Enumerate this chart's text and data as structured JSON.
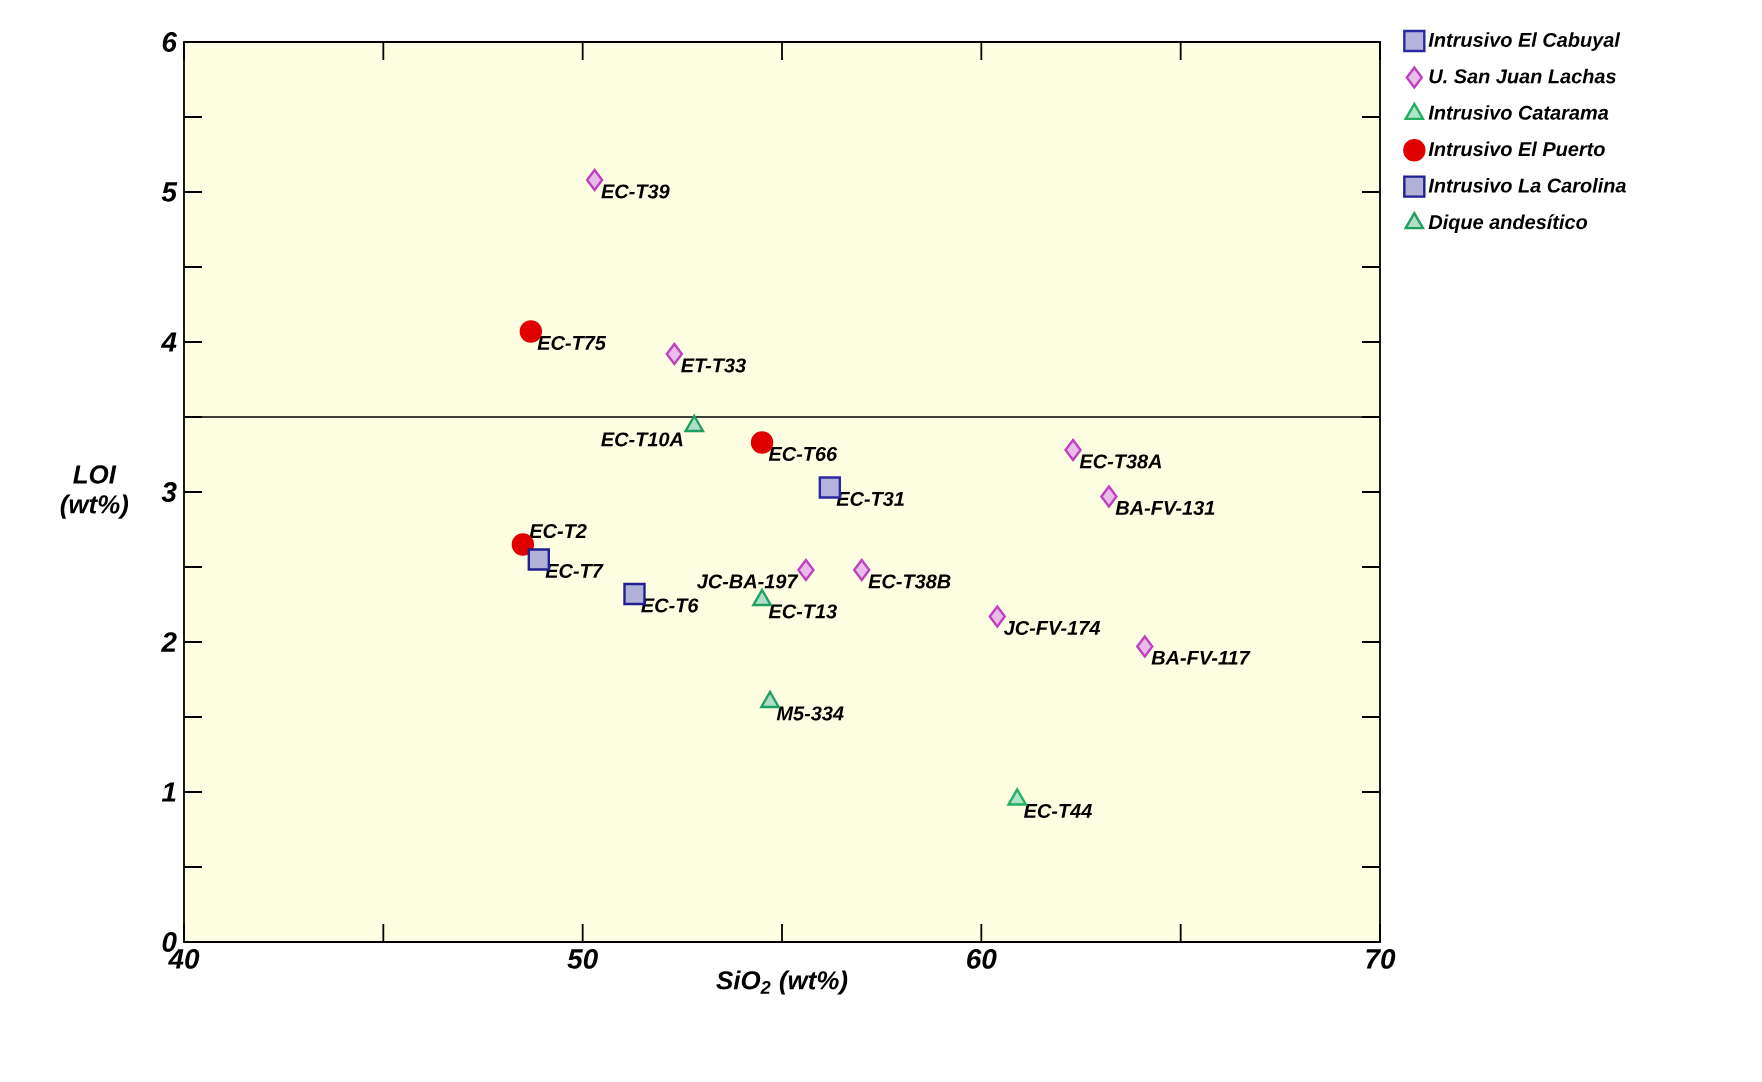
{
  "chart_data": {
    "type": "scatter",
    "xlabel": "SiO$_{2}$ (wt%)",
    "ylabel": "LOI (wt%)",
    "xlim": [
      40,
      70
    ],
    "xticks": [
      40,
      50,
      60,
      70
    ],
    "ylim": [
      0,
      6
    ],
    "yticks": [
      0,
      1,
      2,
      3,
      4,
      5,
      6
    ],
    "grid": false,
    "legend": "top right",
    "ref_lines": [
      {
        "axis": "y",
        "value": 3.5,
        "color": "#000000"
      }
    ],
    "series": [
      {
        "name": "Intrusivo El Cabuyal",
        "marker": "square",
        "color": "#2a2aa0",
        "x": [
          56.2
        ],
        "values": [
          3.03
        ]
      },
      {
        "name": "U. San Juan Lachas",
        "marker": "diamond",
        "color": "#c040c0",
        "x": [
          50.3,
          52.3,
          55.6,
          57.0,
          60.4,
          62.3,
          63.2,
          64.1
        ],
        "values": [
          5.08,
          3.92,
          2.48,
          2.48,
          2.17,
          3.28,
          2.97,
          1.97
        ]
      },
      {
        "name": "Intrusivo Catarama",
        "marker": "triangle",
        "color": "#20b060",
        "x": [
          60.9
        ],
        "values": [
          0.95
        ]
      },
      {
        "name": "Intrusivo El Puerto",
        "marker": "circle",
        "color": "#e00000",
        "x": [
          48.7,
          54.5,
          48.5
        ],
        "values": [
          4.07,
          3.33,
          2.65
        ]
      },
      {
        "name": "Intrusivo La Carolina",
        "marker": "square",
        "color": "#202090",
        "x": [
          48.9,
          51.3
        ],
        "values": [
          2.55,
          2.32
        ]
      },
      {
        "name": "Dique andesítico",
        "marker": "triangle",
        "color": "#20a060",
        "x": [
          52.8,
          54.5,
          54.7
        ],
        "values": [
          3.44,
          2.28,
          1.6
        ]
      }
    ],
    "annotations": [
      {
        "text": "EC-T31",
        "x": 56.2,
        "y": 3.03
      },
      {
        "text": "EC-T39",
        "x": 50.3,
        "y": 5.08
      },
      {
        "text": "ET-T33",
        "x": 52.3,
        "y": 3.92
      },
      {
        "text": "JC-BA-197",
        "x": 55.6,
        "y": 2.48
      },
      {
        "text": "EC-T38B",
        "x": 57.0,
        "y": 2.48
      },
      {
        "text": "JC-FV-174",
        "x": 60.4,
        "y": 2.17
      },
      {
        "text": "EC-T38A",
        "x": 62.3,
        "y": 3.28
      },
      {
        "text": "BA-FV-131",
        "x": 63.2,
        "y": 2.97
      },
      {
        "text": "BA-FV-117",
        "x": 64.1,
        "y": 1.97
      },
      {
        "text": "EC-T44",
        "x": 60.9,
        "y": 0.95
      },
      {
        "text": "EC-T75",
        "x": 48.7,
        "y": 4.07
      },
      {
        "text": "EC-T66",
        "x": 54.5,
        "y": 3.33
      },
      {
        "text": "EC-T2",
        "x": 48.5,
        "y": 2.65
      },
      {
        "text": "EC-T7",
        "x": 48.9,
        "y": 2.55
      },
      {
        "text": "EC-T6",
        "x": 51.3,
        "y": 2.32
      },
      {
        "text": "EC-T10A",
        "x": 52.8,
        "y": 3.44
      },
      {
        "text": "EC-T13",
        "x": 54.5,
        "y": 2.28
      },
      {
        "text": "M5-334",
        "x": 54.7,
        "y": 1.6
      }
    ]
  }
}
